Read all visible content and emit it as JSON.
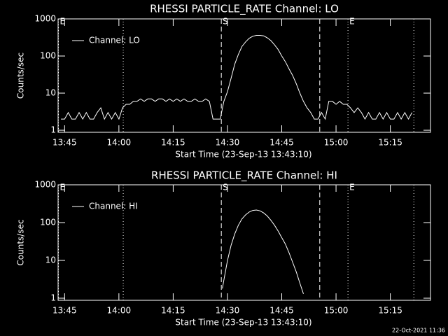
{
  "chart_data": [
    {
      "type": "line",
      "title": "RHESSI PARTICLE_RATE Channel: LO",
      "xlabel": "Start Time (23-Sep-13 13:43:10)",
      "ylabel": "Counts/sec",
      "log_y": true,
      "grid": false,
      "legend": "upper left",
      "color": "#ffffff",
      "xlim": [
        823.2,
        926.1
      ],
      "xticks": [
        {
          "value": 825,
          "label": "13:45"
        },
        {
          "value": 840,
          "label": "14:00"
        },
        {
          "value": 855,
          "label": "14:15"
        },
        {
          "value": 870,
          "label": "14:30"
        },
        {
          "value": 885,
          "label": "14:45"
        },
        {
          "value": 900,
          "label": "15:00"
        },
        {
          "value": 915,
          "label": "15:15"
        }
      ],
      "ylim": [
        0.88,
        1000
      ],
      "yticks": [
        1,
        10,
        100,
        1000
      ],
      "annotations": [
        {
          "x": 823.3,
          "style": "dotted",
          "label": "E"
        },
        {
          "x": 841.2,
          "style": "dotted"
        },
        {
          "x": 868.3,
          "style": "dashed",
          "label": "S"
        },
        {
          "x": 895.5,
          "style": "dashed"
        },
        {
          "x": 903.3,
          "style": "dotted",
          "label": "E"
        },
        {
          "x": 921.5,
          "style": "dotted"
        }
      ],
      "x": [
        824,
        825,
        826,
        827,
        828,
        829,
        830,
        831,
        832,
        833,
        834,
        835,
        836,
        837,
        838,
        839,
        840,
        841,
        842,
        843,
        844,
        845,
        846,
        847,
        848,
        849,
        850,
        851,
        852,
        853,
        854,
        855,
        856,
        857,
        858,
        859,
        860,
        861,
        862,
        863,
        864,
        865,
        866,
        867,
        868,
        869,
        870,
        871,
        872,
        873,
        874,
        875,
        876,
        877,
        878,
        879,
        880,
        881,
        882,
        883,
        884,
        885,
        886,
        887,
        888,
        889,
        890,
        891,
        892,
        893,
        894,
        895,
        896,
        897,
        898,
        899,
        900,
        901,
        902,
        903,
        904,
        905,
        906,
        907,
        908,
        909,
        910,
        911,
        912,
        913,
        914,
        915,
        916,
        917,
        918,
        919,
        920,
        921
      ],
      "series": [
        {
          "name": "Channel: LO",
          "color": "#ffffff",
          "values": [
            2,
            2,
            3,
            2,
            2,
            3,
            2,
            3,
            2,
            2,
            3,
            4,
            2,
            3,
            2,
            3,
            2,
            4,
            5,
            5,
            6,
            6,
            7,
            6,
            7,
            7,
            6,
            7,
            7,
            6,
            7,
            6,
            7,
            6,
            7,
            6,
            6,
            7,
            6,
            6,
            7,
            6,
            2,
            2,
            2,
            6,
            11,
            25,
            60,
            110,
            180,
            240,
            300,
            340,
            360,
            360,
            350,
            310,
            260,
            200,
            150,
            100,
            70,
            45,
            30,
            18,
            10,
            6,
            4,
            3,
            2,
            2,
            3,
            2,
            6,
            6,
            5,
            6,
            5,
            5,
            4,
            3,
            4,
            3,
            2,
            3,
            2,
            2,
            3,
            2,
            3,
            2,
            2,
            3,
            2,
            3,
            2,
            3
          ]
        }
      ]
    },
    {
      "type": "line",
      "title": "RHESSI PARTICLE_RATE Channel: HI",
      "xlabel": "Start Time (23-Sep-13 13:43:10)",
      "ylabel": "Counts/sec",
      "log_y": true,
      "grid": false,
      "legend": "upper left",
      "color": "#ffffff",
      "xlim": [
        823.2,
        926.1
      ],
      "xticks": [
        {
          "value": 825,
          "label": "13:45"
        },
        {
          "value": 840,
          "label": "14:00"
        },
        {
          "value": 855,
          "label": "14:15"
        },
        {
          "value": 870,
          "label": "14:30"
        },
        {
          "value": 885,
          "label": "14:45"
        },
        {
          "value": 900,
          "label": "15:00"
        },
        {
          "value": 915,
          "label": "15:15"
        }
      ],
      "ylim": [
        0.88,
        1000
      ],
      "yticks": [
        1,
        10,
        100,
        1000
      ],
      "annotations": [
        {
          "x": 823.3,
          "style": "dotted",
          "label": "E"
        },
        {
          "x": 841.2,
          "style": "dotted"
        },
        {
          "x": 868.3,
          "style": "dashed",
          "label": "S"
        },
        {
          "x": 895.5,
          "style": "dashed"
        },
        {
          "x": 903.3,
          "style": "dotted",
          "label": "E"
        },
        {
          "x": 921.5,
          "style": "dotted"
        }
      ],
      "x": [
        868.6,
        869,
        870,
        871,
        872,
        873,
        874,
        875,
        876,
        877,
        878,
        879,
        880,
        881,
        882,
        883,
        884,
        885,
        886,
        887,
        888,
        889,
        890,
        891
      ],
      "series": [
        {
          "name": "Channel: HI",
          "color": "#ffffff",
          "values": [
            1.8,
            3,
            10,
            25,
            50,
            85,
            125,
            160,
            190,
            210,
            215,
            205,
            180,
            150,
            115,
            85,
            60,
            40,
            27,
            16,
            9,
            5,
            2.5,
            1.3
          ]
        }
      ]
    }
  ],
  "footer": "22-Oct-2021 11:36"
}
